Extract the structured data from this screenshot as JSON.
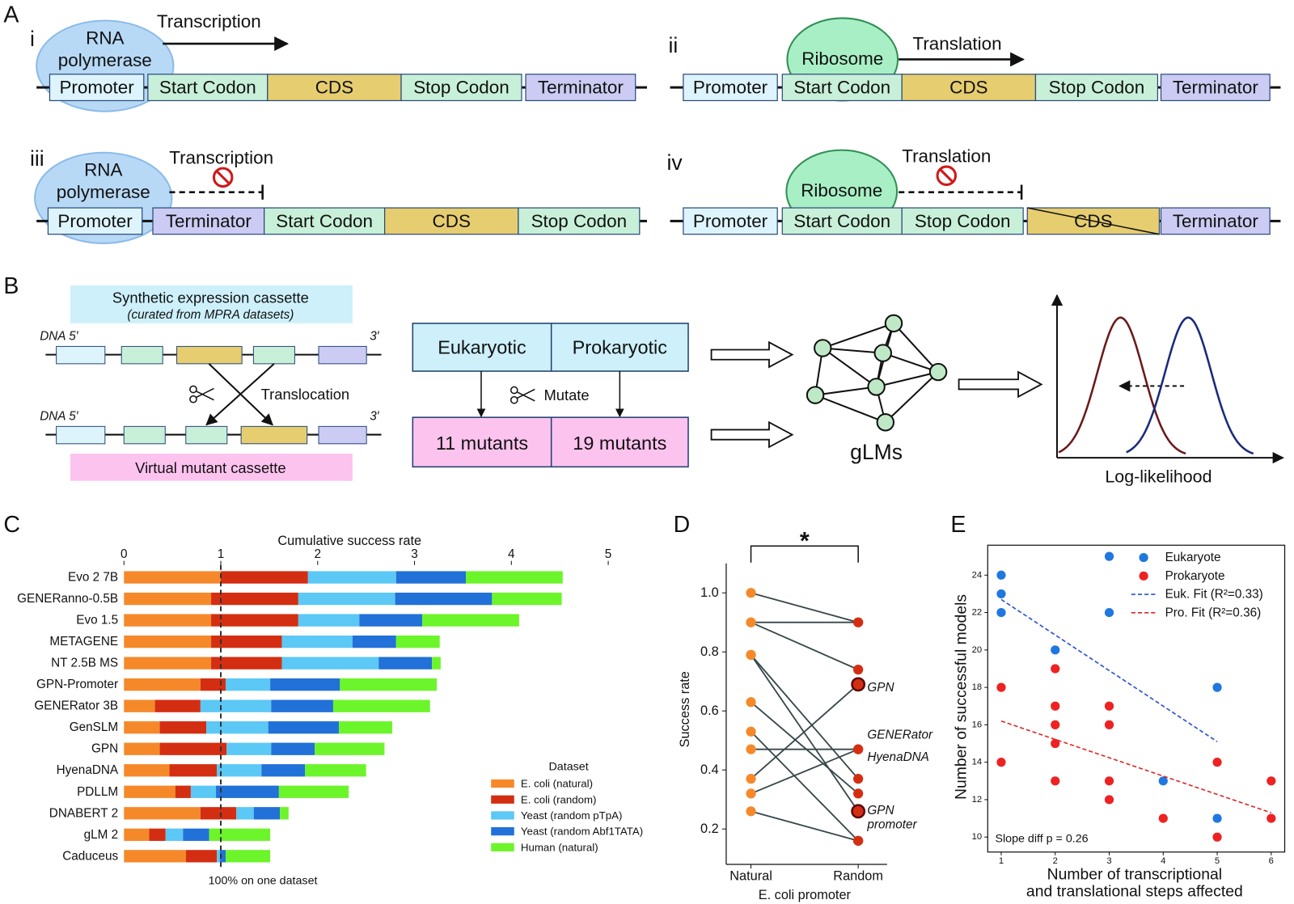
{
  "panel_a": {
    "label": "A",
    "parts": [
      {
        "numeral": "i",
        "agent": [
          "RNA",
          "polymerase"
        ],
        "process": "Transcription",
        "elements": [
          "Promoter",
          "Start Codon",
          "CDS",
          "Stop Codon",
          "Terminator"
        ]
      },
      {
        "numeral": "ii",
        "agent": [
          "Ribosome"
        ],
        "process": "Translation",
        "elements": [
          "Promoter",
          "Start Codon",
          "CDS",
          "Stop Codon",
          "Terminator"
        ]
      },
      {
        "numeral": "iii",
        "agent": [
          "RNA",
          "polymerase"
        ],
        "process": "Transcription",
        "elements": [
          "Promoter",
          "Terminator",
          "Start Codon",
          "CDS",
          "Stop Codon"
        ]
      },
      {
        "numeral": "iv",
        "agent": [
          "Ribosome"
        ],
        "process": "Translation",
        "elements": [
          "Promoter",
          "Start Codon",
          "Stop Codon",
          "CDS",
          "Terminator"
        ]
      }
    ]
  },
  "panel_b": {
    "label": "B",
    "source_title": "Synthetic expression cassette",
    "source_subtitle": "(curated from MPRA datasets)",
    "dna_5": "DNA 5′",
    "dna_3": "3′",
    "operation": "Translocation",
    "mutant_title": "Virtual mutant cassette",
    "domains": [
      "Eukaryotic",
      "Prokaryotic"
    ],
    "mutate": "Mutate",
    "mutants": [
      "11 mutants",
      "19 mutants"
    ],
    "model": "gLMs",
    "plot_xlabel": "Log-likelihood"
  },
  "chart_data": [
    {
      "type": "stacked_bar_h",
      "panel_label": "C",
      "title": "Cumulative success rate",
      "categories": [
        "Evo 2 7B",
        "GENERanno-0.5B",
        "Evo 1.5",
        "METAGENE",
        "NT 2.5B MS",
        "GPN-Promoter",
        "GENERator 3B",
        "GenSLM",
        "GPN",
        "HyenaDNA",
        "PDLLM",
        "DNABERT 2",
        "gLM 2",
        "Caduceus"
      ],
      "series": [
        {
          "name": "E. coli (natural)",
          "color": "#f5892a",
          "values": [
            1.0,
            0.9,
            0.9,
            0.9,
            0.9,
            0.79,
            0.32,
            0.37,
            0.37,
            0.47,
            0.53,
            0.79,
            0.26,
            0.64
          ]
        },
        {
          "name": "E. coli (random)",
          "color": "#d42e12",
          "values": [
            0.9,
            0.9,
            0.9,
            0.73,
            0.73,
            0.26,
            0.47,
            0.48,
            0.69,
            0.49,
            0.16,
            0.37,
            0.17,
            0.32
          ]
        },
        {
          "name": "Yeast (random pTpA)",
          "color": "#5bc8f5",
          "values": [
            0.91,
            1.0,
            0.63,
            0.73,
            1.0,
            0.46,
            0.73,
            0.64,
            0.46,
            0.46,
            0.26,
            0.18,
            0.18,
            0.03
          ]
        },
        {
          "name": "Yeast (random Abf1TATA)",
          "color": "#2171d8",
          "values": [
            0.72,
            1.0,
            0.65,
            0.45,
            0.55,
            0.72,
            0.64,
            0.73,
            0.45,
            0.45,
            0.65,
            0.27,
            0.27,
            0.06
          ]
        },
        {
          "name": "Human (natural)",
          "color": "#6cf52a",
          "values": [
            1.0,
            0.72,
            1.0,
            0.45,
            0.09,
            1.0,
            1.0,
            0.55,
            0.72,
            0.63,
            0.72,
            0.09,
            0.63,
            0.46
          ]
        }
      ],
      "xlim": [
        0,
        5
      ],
      "xticks": [
        0,
        1,
        2,
        3,
        4,
        5
      ],
      "reference_line": {
        "value": 1,
        "label": "100% on one dataset"
      },
      "legend_title": "Dataset",
      "legend": "lower right"
    },
    {
      "type": "paired_slope",
      "panel_label": "D",
      "significance": "*",
      "categories": [
        "Natural",
        "Random"
      ],
      "xlabel": "E. coli promoter",
      "ylabel": "Success rate",
      "start_values": [
        1.0,
        0.9,
        0.9,
        0.79,
        0.79,
        0.63,
        0.53,
        0.47,
        0.37,
        0.32,
        0.26
      ],
      "end_values": [
        0.9,
        0.9,
        0.74,
        0.26,
        0.37,
        0.32,
        0.16,
        0.47,
        0.69,
        0.47,
        0.16
      ],
      "start_color": "#f5892a",
      "end_color": "#d42e12",
      "line_color": "#37474a",
      "highlighted_values": [
        0.69,
        0.26
      ],
      "highlight_color": "#5a0a0a",
      "annotations": [
        "GPN",
        "GENERator",
        "HyenaDNA",
        "GPN",
        "promoter"
      ],
      "ylim": [
        0.08,
        1.1
      ],
      "yticks": [
        0.2,
        0.4,
        0.6,
        0.8,
        {
          "value": 1,
          "label": "1.0"
        }
      ]
    },
    {
      "type": "scatter",
      "panel_label": "E",
      "xlabel": [
        "Number of transcriptional",
        "and translational steps affected"
      ],
      "ylabel": "Number of successful models",
      "annotation": "Slope diff p = 0.26",
      "series": [
        {
          "name": "Eukaryote",
          "color": "#1f77e0",
          "x": [
            1,
            1,
            1,
            2,
            3,
            3,
            4,
            5,
            5
          ],
          "values": [
            24,
            23,
            22,
            20,
            25,
            22,
            13,
            18,
            11
          ]
        },
        {
          "name": "Prokaryote",
          "color": "#ee2222",
          "x": [
            1,
            1,
            2,
            2,
            2,
            2,
            2,
            3,
            3,
            3,
            3,
            4,
            5,
            5,
            6,
            6
          ],
          "values": [
            18,
            14,
            19,
            17,
            16,
            15,
            13,
            17,
            16,
            13,
            12,
            11,
            14,
            10,
            13,
            11
          ]
        },
        {
          "name": "Euk. Fit (R²=0.33)",
          "color": "#2a4fd0",
          "line_style": "dashed",
          "x": [
            1,
            5
          ],
          "values": [
            22.7,
            15.1
          ]
        },
        {
          "name": "Pro. Fit (R²=0.36)",
          "color": "#e02424",
          "line_style": "dashed",
          "x": [
            1,
            6
          ],
          "values": [
            16.2,
            11.3
          ]
        }
      ],
      "xlim": [
        0.75,
        6.25
      ],
      "xticks": [
        1,
        2,
        3,
        4,
        5,
        6
      ],
      "ylim": [
        9.2,
        25.6
      ],
      "yticks": [
        10,
        12,
        14,
        16,
        18,
        20,
        22,
        24
      ],
      "legend": "upper right"
    }
  ]
}
